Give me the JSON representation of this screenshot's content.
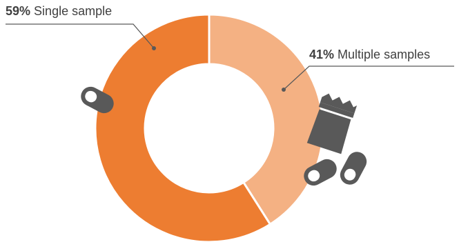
{
  "chart_data": {
    "type": "pie",
    "style": "donut",
    "slices": [
      {
        "label": "Single sample",
        "percent_label": "59%",
        "value": 59,
        "color": "#ED7D31"
      },
      {
        "label": "Multiple samples",
        "percent_label": "41%",
        "value": 41,
        "color": "#F4B183"
      }
    ],
    "legend": "none",
    "icons": [
      "pill-capsule-icon",
      "sample-pouch-icon",
      "pill-capsule-icon",
      "pill-capsule-icon"
    ],
    "icon_color": "#595959",
    "leader_color": "#595959"
  }
}
